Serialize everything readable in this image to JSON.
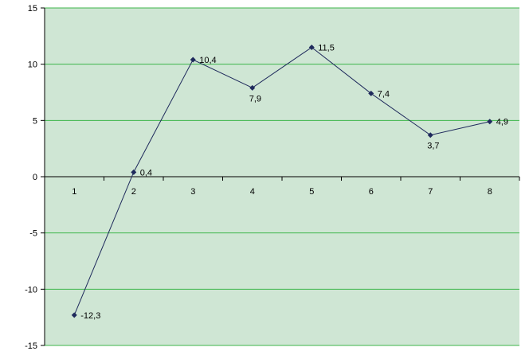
{
  "chart_data": {
    "type": "line",
    "x": [
      1,
      2,
      3,
      4,
      5,
      6,
      7,
      8
    ],
    "categories": [
      "1",
      "2",
      "3",
      "4",
      "5",
      "6",
      "7",
      "8"
    ],
    "series": [
      {
        "values": [
          -12.3,
          0.4,
          10.4,
          7.9,
          11.5,
          7.4,
          3.7,
          4.9
        ],
        "data_labels": [
          "-12,3",
          "0,4",
          "10,4",
          "7,9",
          "11,5",
          "7,4",
          "3,7",
          "4,9"
        ],
        "color": "#1f2a5c"
      }
    ],
    "yticks": [
      "15",
      "10",
      "5",
      "0",
      "-5",
      "-10",
      "-15"
    ],
    "ytick_values": [
      15,
      10,
      5,
      0,
      -5,
      -10,
      -15
    ],
    "ylim": [
      -15,
      15
    ],
    "grid": true,
    "colors": {
      "plot_background": "#cfe6d4",
      "gridline": "#3cb54a",
      "axis": "#000000",
      "line": "#1f2a5c"
    }
  }
}
